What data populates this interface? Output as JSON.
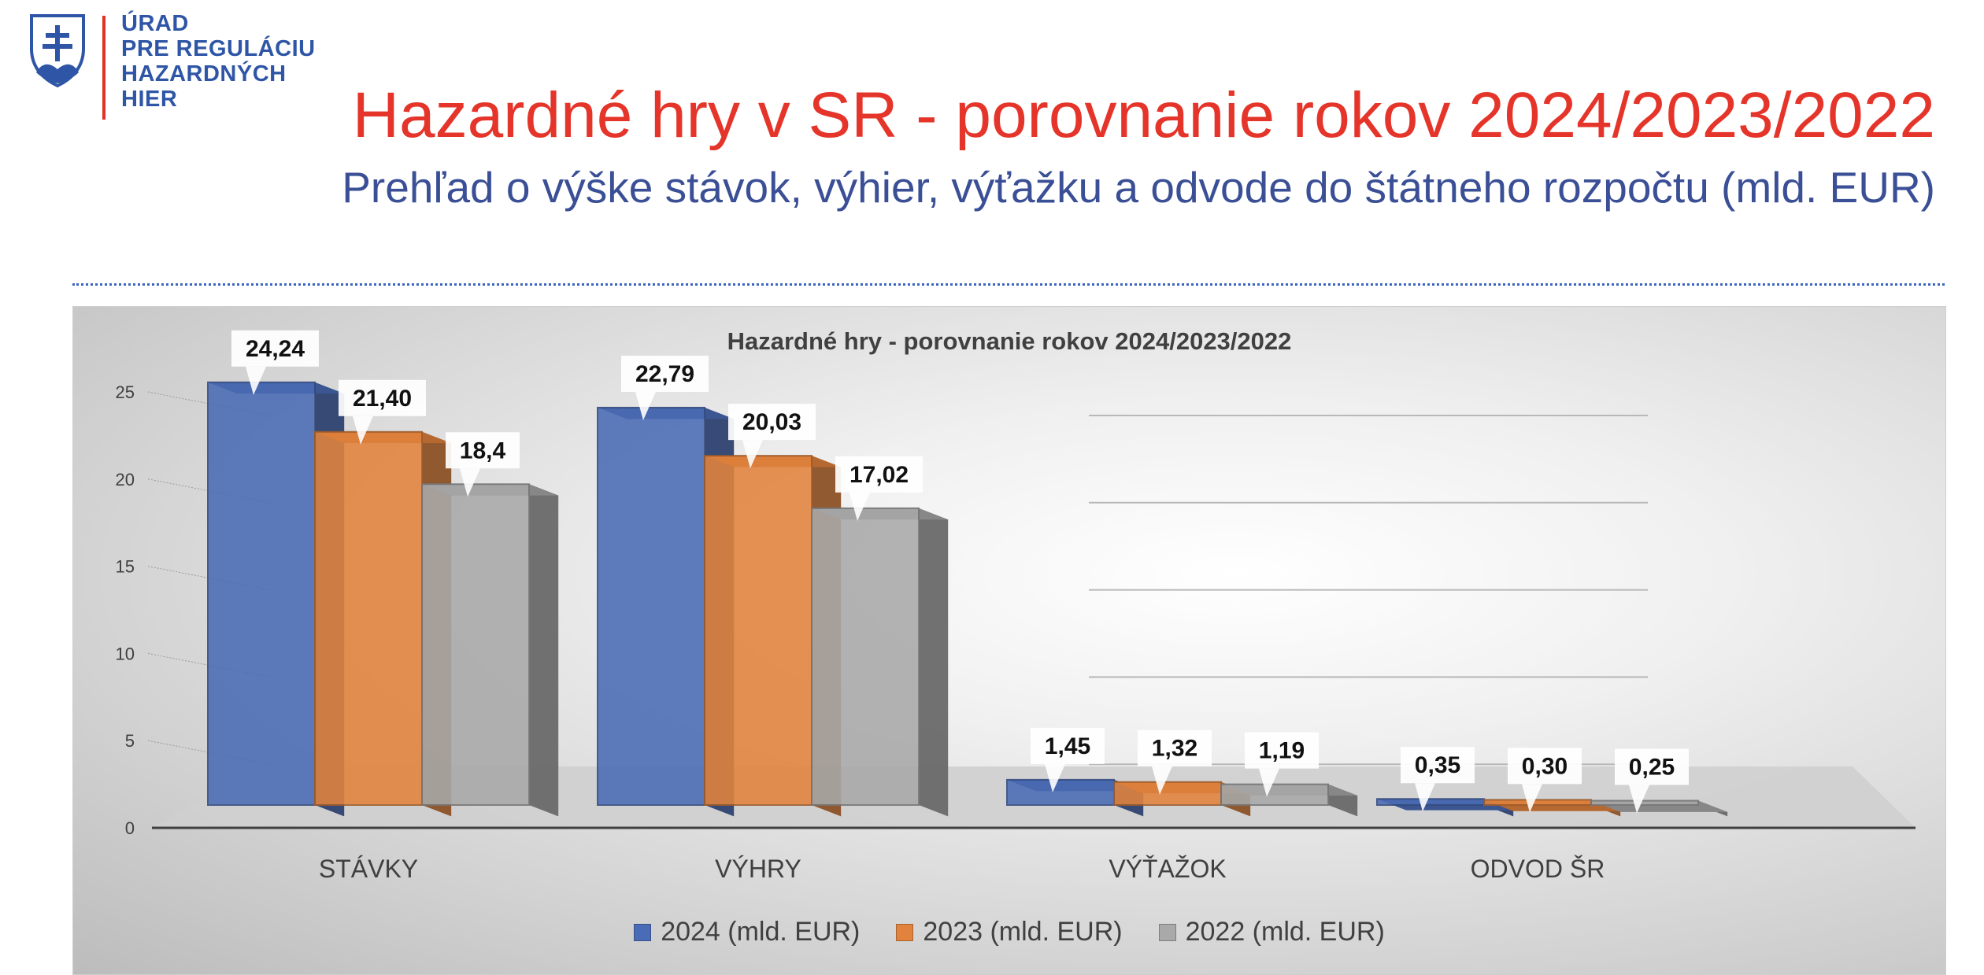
{
  "logo": {
    "lines": [
      "ÚRAD",
      "PRE REGULÁCIU",
      "HAZARDNÝCH",
      "HIER"
    ]
  },
  "header": {
    "title": "Hazardné hry v SR - porovnanie rokov 2024/2023/2022",
    "subtitle": "Prehľad o výške stávok, výhier, výťažku a odvode do štátneho rozpočtu (mld. EUR)"
  },
  "colors": {
    "title": "#e5352a",
    "subtitle": "#3a4f95",
    "rule": "#3b64c2"
  },
  "chart_data": {
    "type": "bar",
    "title": "Hazardné hry - porovnanie rokov 2024/2023/2022",
    "categories": [
      "STÁVKY",
      "VÝHRY",
      "VÝŤAŽOK",
      "ODVOD ŠR"
    ],
    "ylim": [
      0,
      25
    ],
    "yticks": [
      "0",
      "5",
      "10",
      "15",
      "20",
      "25"
    ],
    "grid": true,
    "legend_position": "bottom",
    "series": [
      {
        "name": "2024 (mld. EUR)",
        "color": "#4a6bb5",
        "values": [
          24.24,
          22.79,
          1.45,
          0.35
        ],
        "labels": [
          "24,24",
          "22,79",
          "1,45",
          "0,35"
        ]
      },
      {
        "name": "2023 (mld. EUR)",
        "color": "#e2833d",
        "values": [
          21.4,
          20.03,
          1.32,
          0.3
        ],
        "labels": [
          "21,40",
          "20,03",
          "1,32",
          "0,30"
        ]
      },
      {
        "name": "2022 (mld. EUR)",
        "color": "#a9a9a9",
        "values": [
          18.4,
          17.02,
          1.19,
          0.25
        ],
        "labels": [
          "18,4",
          "17,02",
          "1,19",
          "0,25"
        ]
      }
    ]
  }
}
